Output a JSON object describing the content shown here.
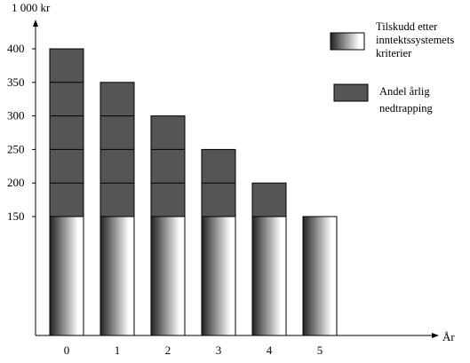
{
  "chart_data": {
    "type": "bar",
    "stacked": true,
    "ylabel": "1 000 kr",
    "xlabel": "År",
    "categories": [
      "0",
      "1",
      "2",
      "3",
      "4",
      "5"
    ],
    "yticks": [
      150,
      200,
      250,
      300,
      350,
      400
    ],
    "ylim": [
      0,
      420
    ],
    "grid": false,
    "legend_position": "top-right",
    "series": [
      {
        "name": "Tilskudd etter inntektssystemets kriterier",
        "legend_lines": [
          "Tilskudd etter",
          "inntektssystemets",
          "kriterier"
        ],
        "values": [
          150,
          150,
          150,
          150,
          150,
          150
        ],
        "fill": "gradient",
        "color_dark": "#222222",
        "color_light": "#ffffff"
      },
      {
        "name": "Andel årlig nedtrapping",
        "legend_lines": [
          "Andel årlig",
          "nedtrapping"
        ],
        "values": [
          250,
          200,
          150,
          100,
          50,
          0
        ],
        "segment_step": 50,
        "color": "#555555"
      }
    ]
  }
}
